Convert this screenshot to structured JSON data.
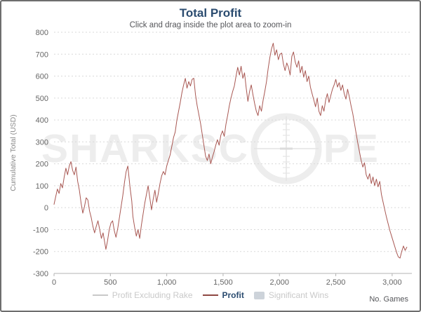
{
  "header": {
    "title": "Total Profit",
    "subtitle": "Click and drag inside the plot area to zoom-in"
  },
  "watermark": {
    "left": "SHARKSC",
    "right": "PE"
  },
  "axes": {
    "y_label": "Cumulative Total (USD)",
    "x_label": "No. Games",
    "y_ticks": [
      -300,
      -200,
      -100,
      0,
      100,
      200,
      300,
      400,
      500,
      600,
      700,
      800
    ],
    "x_ticks": [
      0,
      500,
      1000,
      1500,
      2000,
      2500,
      3000
    ],
    "x_tick_labels": [
      "0",
      "500",
      "1,000",
      "1,500",
      "2,000",
      "2,500",
      "3,000"
    ]
  },
  "legend": [
    {
      "label": "Profit Excluding Rake",
      "marker": "line",
      "marker_color": "#c9c9c9",
      "text_color": "#c9c9c9",
      "active": false
    },
    {
      "label": "Profit",
      "marker": "line",
      "marker_color": "#8e4742",
      "text_color": "#2b4c70",
      "active": true
    },
    {
      "label": "Significant Wins",
      "marker": "box",
      "marker_color": "#cdd3da",
      "text_color": "#c9c9c9",
      "active": false
    }
  ],
  "colors": {
    "line": "#a85752",
    "grid": "#d9d9d9",
    "axis": "#b3b3b3",
    "tick_text": "#666666",
    "title": "#2b4c70",
    "watermark": "#ededed"
  },
  "chart_data": {
    "type": "line",
    "title": "Total Profit",
    "subtitle": "Click and drag inside the plot area to zoom-in",
    "xlabel": "No. Games",
    "ylabel": "Cumulative Total (USD)",
    "xlim": [
      0,
      3175
    ],
    "ylim": [
      -300,
      800
    ],
    "grid": "horizontal-dashed",
    "legend_position": "bottom",
    "series": [
      {
        "name": "Profit",
        "color": "#a85752",
        "points": [
          [
            0,
            15
          ],
          [
            15,
            50
          ],
          [
            30,
            85
          ],
          [
            45,
            65
          ],
          [
            60,
            110
          ],
          [
            75,
            90
          ],
          [
            90,
            140
          ],
          [
            105,
            180
          ],
          [
            120,
            150
          ],
          [
            135,
            190
          ],
          [
            150,
            210
          ],
          [
            165,
            170
          ],
          [
            180,
            150
          ],
          [
            195,
            185
          ],
          [
            210,
            120
          ],
          [
            225,
            80
          ],
          [
            240,
            20
          ],
          [
            255,
            -25
          ],
          [
            270,
            5
          ],
          [
            285,
            45
          ],
          [
            300,
            35
          ],
          [
            315,
            -15
          ],
          [
            330,
            -45
          ],
          [
            345,
            -85
          ],
          [
            360,
            -115
          ],
          [
            375,
            -85
          ],
          [
            390,
            -60
          ],
          [
            405,
            -100
          ],
          [
            420,
            -140
          ],
          [
            435,
            -115
          ],
          [
            450,
            -160
          ],
          [
            460,
            -190
          ],
          [
            475,
            -150
          ],
          [
            490,
            -100
          ],
          [
            505,
            -70
          ],
          [
            520,
            -60
          ],
          [
            535,
            -105
          ],
          [
            550,
            -135
          ],
          [
            565,
            -95
          ],
          [
            580,
            -45
          ],
          [
            595,
            5
          ],
          [
            610,
            55
          ],
          [
            625,
            115
          ],
          [
            640,
            165
          ],
          [
            655,
            190
          ],
          [
            665,
            140
          ],
          [
            675,
            90
          ],
          [
            690,
            30
          ],
          [
            700,
            -40
          ],
          [
            715,
            -90
          ],
          [
            730,
            -130
          ],
          [
            745,
            -100
          ],
          [
            760,
            -140
          ],
          [
            775,
            -80
          ],
          [
            790,
            -30
          ],
          [
            805,
            20
          ],
          [
            820,
            60
          ],
          [
            835,
            100
          ],
          [
            850,
            45
          ],
          [
            865,
            -10
          ],
          [
            880,
            40
          ],
          [
            895,
            80
          ],
          [
            910,
            25
          ],
          [
            925,
            65
          ],
          [
            940,
            110
          ],
          [
            955,
            145
          ],
          [
            970,
            165
          ],
          [
            985,
            150
          ],
          [
            1000,
            190
          ],
          [
            1015,
            215
          ],
          [
            1030,
            240
          ],
          [
            1045,
            280
          ],
          [
            1060,
            320
          ],
          [
            1075,
            345
          ],
          [
            1090,
            400
          ],
          [
            1105,
            440
          ],
          [
            1120,
            480
          ],
          [
            1135,
            525
          ],
          [
            1150,
            560
          ],
          [
            1165,
            590
          ],
          [
            1180,
            545
          ],
          [
            1195,
            575
          ],
          [
            1210,
            555
          ],
          [
            1225,
            585
          ],
          [
            1240,
            590
          ],
          [
            1255,
            515
          ],
          [
            1270,
            465
          ],
          [
            1285,
            425
          ],
          [
            1300,
            385
          ],
          [
            1315,
            335
          ],
          [
            1330,
            285
          ],
          [
            1345,
            235
          ],
          [
            1360,
            215
          ],
          [
            1375,
            245
          ],
          [
            1390,
            200
          ],
          [
            1405,
            230
          ],
          [
            1420,
            255
          ],
          [
            1435,
            285
          ],
          [
            1450,
            310
          ],
          [
            1465,
            285
          ],
          [
            1480,
            330
          ],
          [
            1495,
            350
          ],
          [
            1510,
            325
          ],
          [
            1525,
            380
          ],
          [
            1540,
            420
          ],
          [
            1555,
            465
          ],
          [
            1570,
            500
          ],
          [
            1585,
            530
          ],
          [
            1600,
            555
          ],
          [
            1615,
            600
          ],
          [
            1630,
            640
          ],
          [
            1645,
            605
          ],
          [
            1660,
            645
          ],
          [
            1675,
            590
          ],
          [
            1690,
            615
          ],
          [
            1705,
            545
          ],
          [
            1720,
            485
          ],
          [
            1735,
            530
          ],
          [
            1750,
            560
          ],
          [
            1765,
            515
          ],
          [
            1780,
            475
          ],
          [
            1795,
            440
          ],
          [
            1810,
            420
          ],
          [
            1825,
            465
          ],
          [
            1840,
            440
          ],
          [
            1855,
            490
          ],
          [
            1870,
            530
          ],
          [
            1885,
            575
          ],
          [
            1900,
            635
          ],
          [
            1915,
            685
          ],
          [
            1930,
            725
          ],
          [
            1945,
            750
          ],
          [
            1960,
            695
          ],
          [
            1975,
            720
          ],
          [
            1990,
            675
          ],
          [
            2005,
            700
          ],
          [
            2020,
            705
          ],
          [
            2035,
            655
          ],
          [
            2050,
            625
          ],
          [
            2065,
            660
          ],
          [
            2080,
            640
          ],
          [
            2095,
            605
          ],
          [
            2110,
            690
          ],
          [
            2125,
            710
          ],
          [
            2140,
            665
          ],
          [
            2155,
            640
          ],
          [
            2170,
            670
          ],
          [
            2185,
            615
          ],
          [
            2200,
            645
          ],
          [
            2215,
            595
          ],
          [
            2230,
            625
          ],
          [
            2245,
            575
          ],
          [
            2260,
            600
          ],
          [
            2275,
            550
          ],
          [
            2290,
            520
          ],
          [
            2305,
            490
          ],
          [
            2320,
            460
          ],
          [
            2335,
            500
          ],
          [
            2350,
            440
          ],
          [
            2365,
            420
          ],
          [
            2380,
            465
          ],
          [
            2395,
            440
          ],
          [
            2410,
            490
          ],
          [
            2425,
            520
          ],
          [
            2440,
            480
          ],
          [
            2455,
            510
          ],
          [
            2470,
            540
          ],
          [
            2485,
            560
          ],
          [
            2500,
            585
          ],
          [
            2515,
            550
          ],
          [
            2530,
            570
          ],
          [
            2545,
            535
          ],
          [
            2560,
            560
          ],
          [
            2575,
            520
          ],
          [
            2590,
            495
          ],
          [
            2605,
            540
          ],
          [
            2620,
            505
          ],
          [
            2635,
            465
          ],
          [
            2650,
            430
          ],
          [
            2665,
            385
          ],
          [
            2680,
            340
          ],
          [
            2695,
            295
          ],
          [
            2710,
            255
          ],
          [
            2725,
            215
          ],
          [
            2740,
            185
          ],
          [
            2755,
            205
          ],
          [
            2770,
            150
          ],
          [
            2785,
            130
          ],
          [
            2800,
            155
          ],
          [
            2815,
            110
          ],
          [
            2830,
            140
          ],
          [
            2845,
            100
          ],
          [
            2860,
            130
          ],
          [
            2875,
            95
          ],
          [
            2890,
            120
          ],
          [
            2905,
            60
          ],
          [
            2920,
            25
          ],
          [
            2935,
            -10
          ],
          [
            2950,
            -45
          ],
          [
            2965,
            -75
          ],
          [
            2980,
            -105
          ],
          [
            2995,
            -130
          ],
          [
            3010,
            -155
          ],
          [
            3025,
            -180
          ],
          [
            3040,
            -205
          ],
          [
            3055,
            -225
          ],
          [
            3070,
            -230
          ],
          [
            3085,
            -200
          ],
          [
            3100,
            -175
          ],
          [
            3115,
            -195
          ],
          [
            3130,
            -180
          ]
        ]
      }
    ]
  }
}
